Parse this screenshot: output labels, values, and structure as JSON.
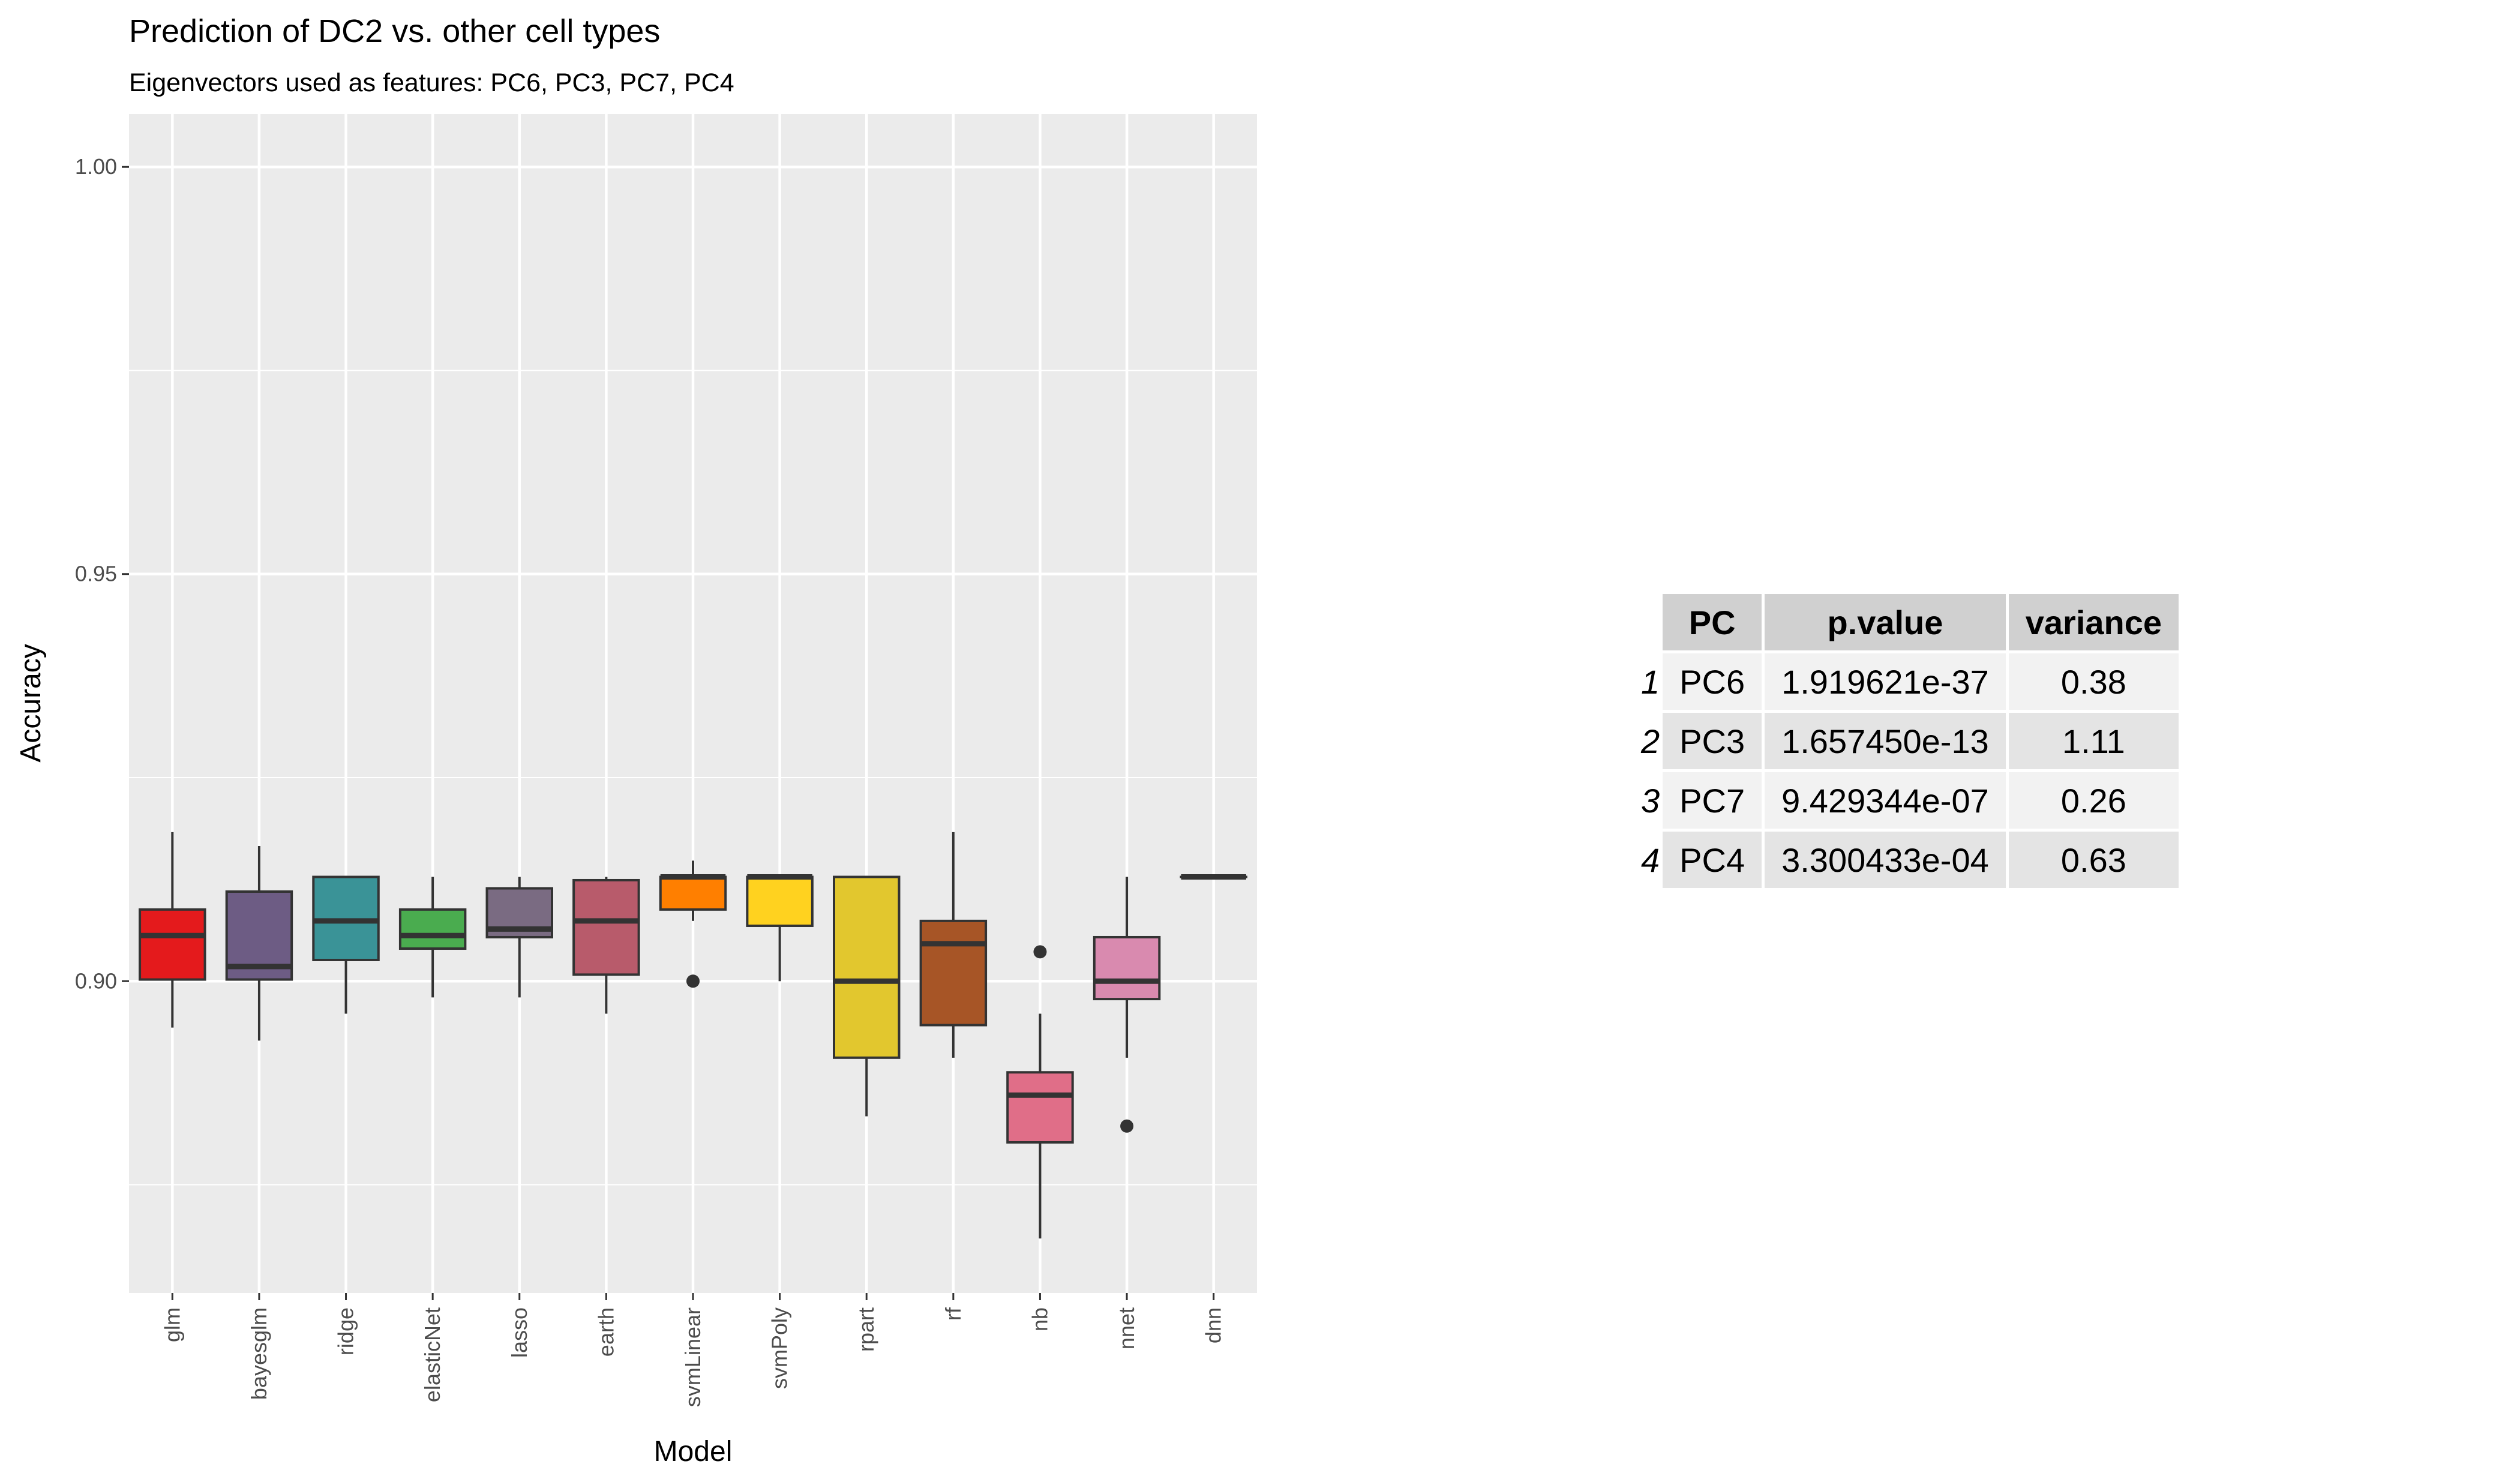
{
  "chart_data": {
    "type": "boxplot",
    "title": "Prediction of DC2 vs. other cell types",
    "subtitle": "Eigenvectors used as features: PC6, PC3, PC7, PC4",
    "xlabel": "Model",
    "ylabel": "Accuracy",
    "ylim": [
      0.8617,
      1.0065
    ],
    "yticks": [
      0.9,
      0.95,
      1.0
    ],
    "ytick_labels": [
      "0.90",
      "0.95",
      "1.00"
    ],
    "grid": true,
    "legend": "none",
    "categories": [
      "glm",
      "bayesglm",
      "ridge",
      "elasticNet",
      "lasso",
      "earth",
      "svmLinear",
      "svmPoly",
      "rpart",
      "rf",
      "nb",
      "nnet",
      "dnn"
    ],
    "boxes": [
      {
        "name": "glm",
        "min": 0.8943,
        "q1": 0.9002,
        "median": 0.9056,
        "q3": 0.9088,
        "max": 0.9183,
        "outliers": [],
        "color": "#e41a1c"
      },
      {
        "name": "bayesglm",
        "min": 0.8927,
        "q1": 0.9002,
        "median": 0.9018,
        "q3": 0.911,
        "max": 0.9166,
        "outliers": [],
        "color": "#6d5c84"
      },
      {
        "name": "ridge",
        "min": 0.896,
        "q1": 0.9026,
        "median": 0.9074,
        "q3": 0.9128,
        "max": 0.9128,
        "outliers": [],
        "color": "#3a9397"
      },
      {
        "name": "elasticNet",
        "min": 0.898,
        "q1": 0.904,
        "median": 0.9056,
        "q3": 0.9088,
        "max": 0.9128,
        "outliers": [],
        "color": "#4aac4f"
      },
      {
        "name": "lasso",
        "min": 0.898,
        "q1": 0.9054,
        "median": 0.9064,
        "q3": 0.9114,
        "max": 0.9128,
        "outliers": [],
        "color": "#7a6b82"
      },
      {
        "name": "earth",
        "min": 0.896,
        "q1": 0.9008,
        "median": 0.9074,
        "q3": 0.9124,
        "max": 0.9128,
        "outliers": [],
        "color": "#b85b6b"
      },
      {
        "name": "svmLinear",
        "min": 0.9074,
        "q1": 0.9088,
        "median": 0.9128,
        "q3": 0.9128,
        "max": 0.9148,
        "outliers": [
          0.9
        ],
        "color": "#ff7f00"
      },
      {
        "name": "svmPoly",
        "min": 0.9,
        "q1": 0.9068,
        "median": 0.9128,
        "q3": 0.9128,
        "max": 0.9128,
        "outliers": [],
        "color": "#ffd21f"
      },
      {
        "name": "rpart",
        "min": 0.8834,
        "q1": 0.8906,
        "median": 0.9,
        "q3": 0.9128,
        "max": 0.9128,
        "outliers": [],
        "color": "#e2c72e"
      },
      {
        "name": "rf",
        "min": 0.8906,
        "q1": 0.8946,
        "median": 0.9046,
        "q3": 0.9074,
        "max": 0.9183,
        "outliers": [],
        "color": "#a75526"
      },
      {
        "name": "nb",
        "min": 0.8684,
        "q1": 0.8802,
        "median": 0.886,
        "q3": 0.8888,
        "max": 0.896,
        "outliers": [
          0.9036
        ],
        "color": "#e06e88"
      },
      {
        "name": "nnet",
        "min": 0.8906,
        "q1": 0.8978,
        "median": 0.9,
        "q3": 0.9054,
        "max": 0.9128,
        "outliers": [
          0.8822
        ],
        "color": "#d98aaf"
      },
      {
        "name": "dnn",
        "min": 0.9128,
        "q1": 0.9128,
        "median": 0.9128,
        "q3": 0.9128,
        "max": 0.9128,
        "outliers": [],
        "color": "#999999"
      }
    ]
  },
  "pc_table": {
    "headers": [
      "PC",
      "p.value",
      "variance"
    ],
    "rows": [
      {
        "rowname": "1",
        "pc": "PC6",
        "p_value": "1.919621e-37",
        "variance": "0.38"
      },
      {
        "rowname": "2",
        "pc": "PC3",
        "p_value": "1.657450e-13",
        "variance": "1.11"
      },
      {
        "rowname": "3",
        "pc": "PC7",
        "p_value": "9.429344e-07",
        "variance": "0.26"
      },
      {
        "rowname": "4",
        "pc": "PC4",
        "p_value": "3.300433e-04",
        "variance": "0.63"
      }
    ]
  }
}
